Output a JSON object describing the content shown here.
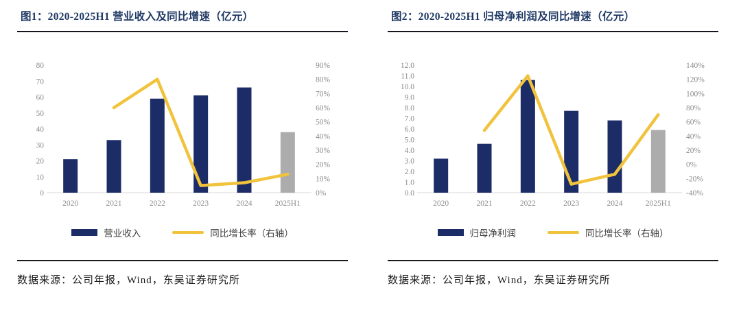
{
  "colors": {
    "title_navy": "#1f3864",
    "bar_navy": "#1b2c66",
    "bar_gray": "#acacac",
    "line_yellow": "#f1c33c",
    "axis_label_gray": "#8c8c8c",
    "baseline_gray": "#d8d8d8",
    "separator_dark": "#1a1a1a"
  },
  "charts": [
    {
      "title": "图1：2020-2025H1 营业收入及同比增速（亿元）",
      "source": "数据来源：公司年报，Wind，东吴证券研究所",
      "chart_data": {
        "type": "bar+line combo",
        "title": "2020-2025H1 营业收入及同比增速（亿元）",
        "categories": [
          "2020",
          "2021",
          "2022",
          "2023",
          "2024",
          "2025H1"
        ],
        "series": [
          {
            "name": "营业收入",
            "type": "bar",
            "axis": "left",
            "values": [
              21,
              33,
              59,
              61,
              66,
              38
            ],
            "colors": [
              "#1b2c66",
              "#1b2c66",
              "#1b2c66",
              "#1b2c66",
              "#1b2c66",
              "#acacac"
            ]
          },
          {
            "name": "同比增长率（右轴）",
            "type": "line",
            "axis": "right",
            "values": [
              null,
              60,
              80,
              5,
              7,
              13
            ],
            "color": "#f1c33c"
          }
        ],
        "left_axis": {
          "min": 0,
          "max": 80,
          "step": 10,
          "decimals": 0
        },
        "right_axis": {
          "min": 0,
          "max": 90,
          "step": 10,
          "suffix": "%"
        },
        "grid": false,
        "legend_position": "bottom"
      }
    },
    {
      "title": "图2：2020-2025H1 归母净利润及同比增速（亿元）",
      "source": "数据来源：公司年报，Wind，东吴证券研究所",
      "chart_data": {
        "type": "bar+line combo",
        "title": "2020-2025H1 归母净利润及同比增速（亿元）",
        "categories": [
          "2020",
          "2021",
          "2022",
          "2023",
          "2024",
          "2025H1"
        ],
        "series": [
          {
            "name": "归母净利润",
            "type": "bar",
            "axis": "left",
            "values": [
              3.2,
              4.6,
              10.6,
              7.7,
              6.8,
              5.9
            ],
            "colors": [
              "#1b2c66",
              "#1b2c66",
              "#1b2c66",
              "#1b2c66",
              "#1b2c66",
              "#acacac"
            ]
          },
          {
            "name": "同比增长率（右轴）",
            "type": "line",
            "axis": "right",
            "values": [
              null,
              48,
              125,
              -28,
              -14,
              70
            ],
            "color": "#f1c33c"
          }
        ],
        "left_axis": {
          "min": 0,
          "max": 12,
          "step": 1,
          "decimals": 1
        },
        "right_axis": {
          "min": -40,
          "max": 140,
          "step": 20,
          "suffix": "%"
        },
        "grid": false,
        "legend_position": "bottom"
      }
    }
  ]
}
